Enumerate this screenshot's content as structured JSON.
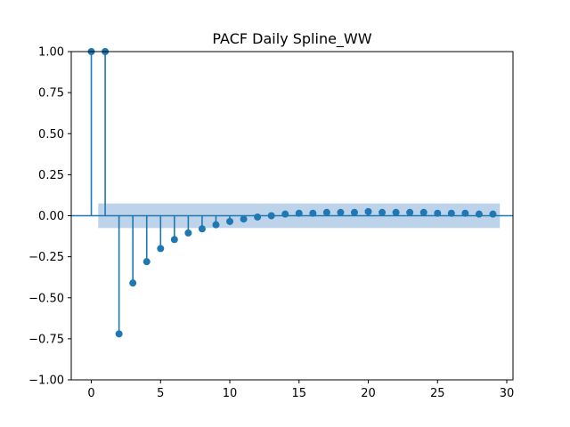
{
  "chart_data": {
    "type": "stem",
    "title": "PACF Daily Spline_WW",
    "xlabel": "",
    "ylabel": "",
    "xlim": [
      -1.45,
      30.45
    ],
    "ylim": [
      -1.0,
      1.0
    ],
    "x_ticks": [
      0,
      5,
      10,
      15,
      20,
      25,
      30
    ],
    "x_tick_labels": [
      "0",
      "5",
      "10",
      "15",
      "20",
      "25",
      "30"
    ],
    "y_ticks": [
      1.0,
      0.75,
      0.5,
      0.25,
      0.0,
      -0.25,
      -0.5,
      -0.75,
      -1.0
    ],
    "y_tick_labels": [
      "1.00",
      "0.75",
      "0.50",
      "0.25",
      "0.00",
      "−0.25",
      "−0.50",
      "−0.75",
      "−1.00"
    ],
    "grid": false,
    "confidence_band": {
      "x_range": [
        0.5,
        29.5
      ],
      "upper": 0.075,
      "lower": -0.075,
      "color": "#a6c4e2"
    },
    "series": [
      {
        "lags": [
          0,
          1,
          2,
          3,
          4,
          5,
          6,
          7,
          8,
          9,
          10,
          11,
          12,
          13,
          14,
          15,
          16,
          17,
          18,
          19,
          20,
          21,
          22,
          23,
          24,
          25,
          26,
          27,
          28,
          29
        ],
        "values": [
          1.0,
          1.0,
          -0.72,
          -0.41,
          -0.28,
          -0.2,
          -0.145,
          -0.105,
          -0.08,
          -0.055,
          -0.035,
          -0.02,
          -0.008,
          0.0,
          0.01,
          0.015,
          0.015,
          0.02,
          0.02,
          0.02,
          0.025,
          0.02,
          0.02,
          0.02,
          0.02,
          0.015,
          0.015,
          0.015,
          0.01,
          0.01
        ],
        "color": "#1f77b4"
      }
    ]
  }
}
